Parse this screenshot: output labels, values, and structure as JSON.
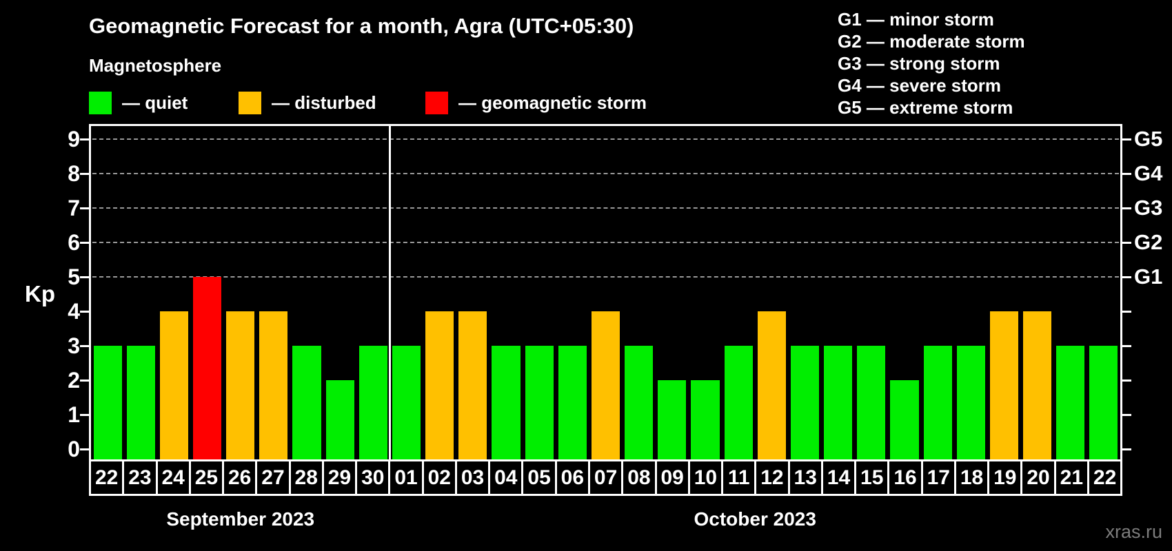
{
  "title": "Geomagnetic Forecast for a month, Agra (UTC+05:30)",
  "subtitle": "Magnetosphere",
  "status_legend": [
    {
      "name": "quiet",
      "label": "— quiet"
    },
    {
      "name": "disturbed",
      "label": "— disturbed"
    },
    {
      "name": "storm",
      "label": "— geomagnetic storm"
    }
  ],
  "g_scale_legend": [
    "G1 — minor storm",
    "G2 — moderate storm",
    "G3 — strong storm",
    "G4 — severe storm",
    "G5 — extreme storm"
  ],
  "watermark": "xras.ru",
  "colors": {
    "quiet": "#00ee00",
    "disturbed": "#ffc000",
    "storm": "#ff0000",
    "axis": "#ffffff",
    "grid": "#9a9a9a",
    "watermark_text": "#7d7d7d"
  },
  "chart_data": {
    "type": "bar",
    "ylabel": "Kp",
    "ylim": [
      0,
      9.4
    ],
    "yticks": [
      0,
      1,
      2,
      3,
      4,
      5,
      6,
      7,
      8,
      9
    ],
    "grid": "dashed horizontal lines at Kp 5-9 only",
    "legend_position": "top",
    "g_levels": [
      {
        "kp": 5,
        "label": "G1"
      },
      {
        "kp": 6,
        "label": "G2"
      },
      {
        "kp": 7,
        "label": "G3"
      },
      {
        "kp": 8,
        "label": "G4"
      },
      {
        "kp": 9,
        "label": "G5"
      }
    ],
    "months": [
      {
        "label": "September 2023",
        "start_index": 0,
        "days": 9
      },
      {
        "label": "October 2023",
        "start_index": 9,
        "days": 22
      }
    ],
    "bars": [
      {
        "day": "22",
        "kp": 3,
        "status": "quiet"
      },
      {
        "day": "23",
        "kp": 3,
        "status": "quiet"
      },
      {
        "day": "24",
        "kp": 4,
        "status": "disturbed"
      },
      {
        "day": "25",
        "kp": 5,
        "status": "storm"
      },
      {
        "day": "26",
        "kp": 4,
        "status": "disturbed"
      },
      {
        "day": "27",
        "kp": 4,
        "status": "disturbed"
      },
      {
        "day": "28",
        "kp": 3,
        "status": "quiet"
      },
      {
        "day": "29",
        "kp": 2,
        "status": "quiet"
      },
      {
        "day": "30",
        "kp": 3,
        "status": "quiet"
      },
      {
        "day": "01",
        "kp": 3,
        "status": "quiet"
      },
      {
        "day": "02",
        "kp": 4,
        "status": "disturbed"
      },
      {
        "day": "03",
        "kp": 4,
        "status": "disturbed"
      },
      {
        "day": "04",
        "kp": 3,
        "status": "quiet"
      },
      {
        "day": "05",
        "kp": 3,
        "status": "quiet"
      },
      {
        "day": "06",
        "kp": 3,
        "status": "quiet"
      },
      {
        "day": "07",
        "kp": 4,
        "status": "disturbed"
      },
      {
        "day": "08",
        "kp": 3,
        "status": "quiet"
      },
      {
        "day": "09",
        "kp": 2,
        "status": "quiet"
      },
      {
        "day": "10",
        "kp": 2,
        "status": "quiet"
      },
      {
        "day": "11",
        "kp": 3,
        "status": "quiet"
      },
      {
        "day": "12",
        "kp": 4,
        "status": "disturbed"
      },
      {
        "day": "13",
        "kp": 3,
        "status": "quiet"
      },
      {
        "day": "14",
        "kp": 3,
        "status": "quiet"
      },
      {
        "day": "15",
        "kp": 3,
        "status": "quiet"
      },
      {
        "day": "16",
        "kp": 2,
        "status": "quiet"
      },
      {
        "day": "17",
        "kp": 3,
        "status": "quiet"
      },
      {
        "day": "18",
        "kp": 3,
        "status": "quiet"
      },
      {
        "day": "19",
        "kp": 4,
        "status": "disturbed"
      },
      {
        "day": "20",
        "kp": 4,
        "status": "disturbed"
      },
      {
        "day": "21",
        "kp": 3,
        "status": "quiet"
      },
      {
        "day": "22",
        "kp": 3,
        "status": "quiet"
      }
    ]
  }
}
